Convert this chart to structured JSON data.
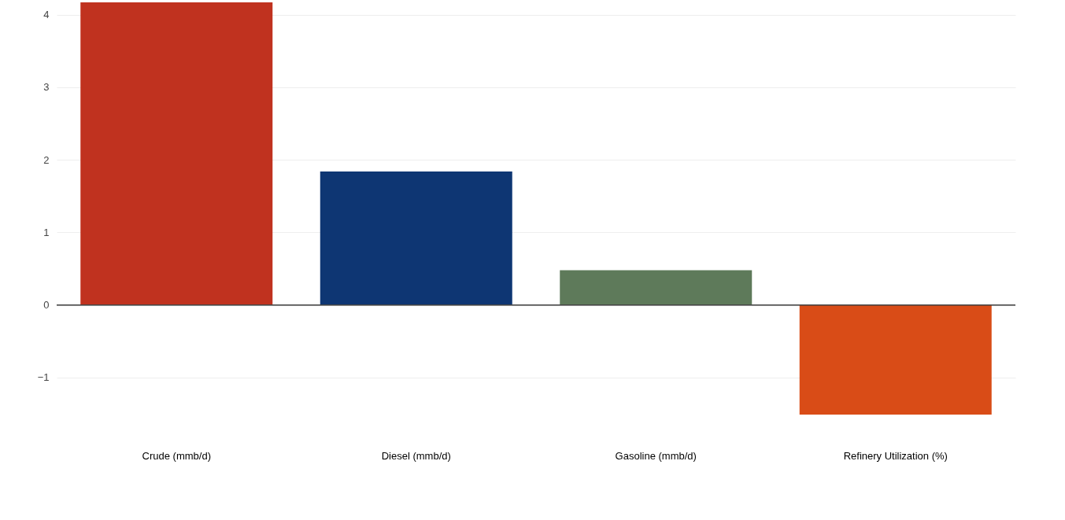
{
  "chart_data": {
    "type": "bar",
    "categories": [
      "Crude (mmb/d)",
      "Diesel (mmb/d)",
      "Gasoline (mmb/d)",
      "Refinery Utilization (%)"
    ],
    "values": [
      4.17,
      1.84,
      0.48,
      -1.51
    ],
    "colors": [
      "#c0321f",
      "#0e3673",
      "#5e7a5a",
      "#d94c17"
    ],
    "ylim": [
      -1.51,
      4.17
    ],
    "yticks": [
      {
        "value": -1,
        "label": "−1"
      },
      0,
      1,
      2,
      3,
      4
    ],
    "grid": "y"
  }
}
